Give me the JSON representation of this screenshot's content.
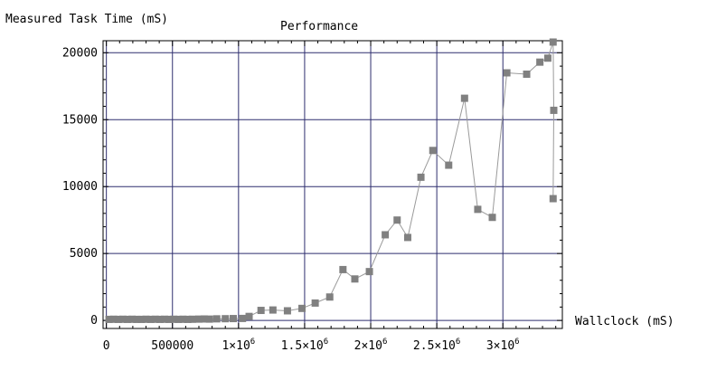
{
  "chart_data": {
    "type": "line",
    "title": "Performance",
    "ylabel": "Measured Task Time (mS)",
    "xlabel": "Wallclock (mS)",
    "xlim": [
      -25000,
      3450000
    ],
    "ylim": [
      -600,
      20900
    ],
    "x_ticks": [
      {
        "value": 0,
        "label": "0"
      },
      {
        "value": 500000,
        "label": "500000"
      },
      {
        "value": 1000000,
        "mantissa": "1",
        "exponent": "6"
      },
      {
        "value": 1500000,
        "mantissa": "1.5",
        "exponent": "6"
      },
      {
        "value": 2000000,
        "mantissa": "2",
        "exponent": "6"
      },
      {
        "value": 2500000,
        "mantissa": "2.5",
        "exponent": "6"
      },
      {
        "value": 3000000,
        "mantissa": "3",
        "exponent": "6"
      }
    ],
    "y_ticks": [
      {
        "value": 0,
        "label": "0"
      },
      {
        "value": 5000,
        "label": "5000"
      },
      {
        "value": 10000,
        "label": "10000"
      },
      {
        "value": 15000,
        "label": "15000"
      },
      {
        "value": 20000,
        "label": "20000"
      }
    ],
    "grid": true,
    "colors": {
      "grid": "#2e2e6e",
      "marker": "#808080",
      "line": "#9a9a9a",
      "axis": "#000000"
    },
    "series": [
      {
        "x": [
          20000,
          55000,
          90000,
          125000,
          160000,
          195000,
          230000,
          265000,
          300000,
          335000,
          370000,
          405000,
          440000,
          475000,
          510000,
          545000,
          580000,
          615000,
          650000,
          700000,
          740000,
          780000,
          835000,
          900000,
          960000,
          1030000,
          1080000,
          1170000,
          1260000,
          1370000,
          1480000,
          1580000,
          1690000,
          1790000,
          1880000,
          1990000,
          2110000,
          2200000,
          2280000,
          2380000,
          2470000,
          2590000,
          2710000,
          2810000,
          2920000,
          3030000,
          3180000,
          3280000,
          3340000,
          3380000,
          3385000,
          3380000
        ],
        "y": [
          80,
          90,
          80,
          90,
          80,
          90,
          80,
          80,
          90,
          80,
          90,
          80,
          90,
          80,
          90,
          80,
          90,
          80,
          90,
          100,
          110,
          100,
          120,
          130,
          140,
          150,
          300,
          750,
          780,
          720,
          900,
          1300,
          1750,
          3800,
          3100,
          3650,
          6400,
          7500,
          6200,
          10700,
          12700,
          11600,
          16600,
          8300,
          7700,
          18500,
          18400,
          19300,
          19600,
          20800,
          15700,
          9100
        ]
      }
    ]
  }
}
